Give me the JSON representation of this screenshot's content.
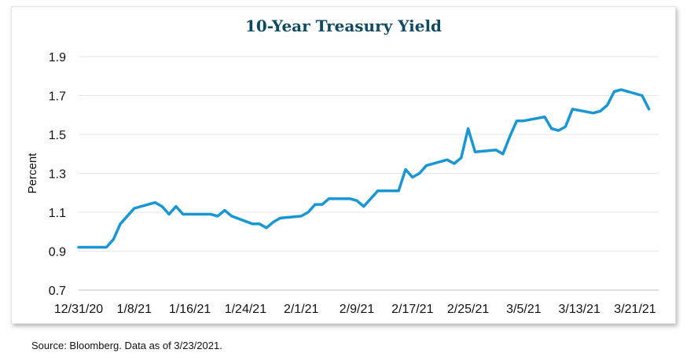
{
  "source_note": "Source: Bloomberg. Data as of 3/23/2021.",
  "colors": {
    "line": "#1a96d4",
    "title": "#0f4a61",
    "grid": "#e6e6e6"
  },
  "chart_data": {
    "type": "line",
    "title": "10-Year Treasury Yield",
    "ylabel": "Percent",
    "xlabel": "",
    "ylim": [
      0.7,
      1.9
    ],
    "yticks": [
      "0.7",
      "0.9",
      "1.1",
      "1.3",
      "1.5",
      "1.7",
      "1.9"
    ],
    "xticks": [
      "12/31/20",
      "1/8/21",
      "1/16/21",
      "1/24/21",
      "2/1/21",
      "2/9/21",
      "2/17/21",
      "2/25/21",
      "3/5/21",
      "3/13/21",
      "3/21/21"
    ],
    "grid": "horizontal",
    "series": [
      {
        "x": [
          "12/31/20",
          "1/1/21",
          "1/4/21",
          "1/5/21",
          "1/6/21",
          "1/7/21",
          "1/8/21",
          "1/11/21",
          "1/12/21",
          "1/13/21",
          "1/14/21",
          "1/15/21",
          "1/18/21",
          "1/19/21",
          "1/20/21",
          "1/21/21",
          "1/22/21",
          "1/25/21",
          "1/26/21",
          "1/27/21",
          "1/28/21",
          "1/29/21",
          "2/1/21",
          "2/2/21",
          "2/3/21",
          "2/4/21",
          "2/5/21",
          "2/8/21",
          "2/9/21",
          "2/10/21",
          "2/11/21",
          "2/12/21",
          "2/15/21",
          "2/16/21",
          "2/17/21",
          "2/18/21",
          "2/19/21",
          "2/22/21",
          "2/23/21",
          "2/24/21",
          "2/25/21",
          "2/26/21",
          "3/1/21",
          "3/2/21",
          "3/3/21",
          "3/4/21",
          "3/5/21",
          "3/8/21",
          "3/9/21",
          "3/10/21",
          "3/11/21",
          "3/12/21",
          "3/15/21",
          "3/16/21",
          "3/17/21",
          "3/18/21",
          "3/19/21",
          "3/22/21",
          "3/23/21"
        ],
        "values": [
          0.92,
          0.92,
          0.92,
          0.96,
          1.04,
          1.08,
          1.12,
          1.15,
          1.13,
          1.09,
          1.13,
          1.09,
          1.09,
          1.09,
          1.08,
          1.11,
          1.08,
          1.04,
          1.04,
          1.02,
          1.05,
          1.07,
          1.08,
          1.1,
          1.14,
          1.14,
          1.17,
          1.17,
          1.16,
          1.13,
          1.17,
          1.21,
          1.21,
          1.32,
          1.28,
          1.3,
          1.34,
          1.37,
          1.35,
          1.38,
          1.53,
          1.41,
          1.42,
          1.4,
          1.49,
          1.57,
          1.57,
          1.59,
          1.53,
          1.52,
          1.54,
          1.63,
          1.61,
          1.62,
          1.65,
          1.72,
          1.73,
          1.7,
          1.63
        ]
      }
    ]
  }
}
